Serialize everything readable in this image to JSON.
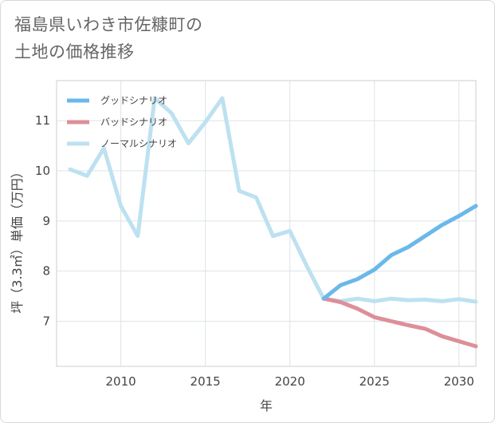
{
  "title_lines": [
    "福島県いわき市佐糠町の",
    "土地の価格推移"
  ],
  "chart_data": {
    "type": "line",
    "xlabel": "年",
    "ylabel": "坪（3.3㎡）単価（万円）",
    "xlim": [
      2006.2,
      2031
    ],
    "ylim": [
      6.1,
      11.8
    ],
    "xticks": [
      2010,
      2015,
      2020,
      2025,
      2030
    ],
    "yticks": [
      7,
      8,
      9,
      10,
      11
    ],
    "grid": true,
    "legend_position": "top-left",
    "series": [
      {
        "name": "グッドシナリオ",
        "color": "#6bb8ea",
        "x": [
          2022,
          2023,
          2024,
          2025,
          2026,
          2027,
          2028,
          2029,
          2030,
          2031
        ],
        "values": [
          7.45,
          7.72,
          7.84,
          8.03,
          8.32,
          8.48,
          8.7,
          8.92,
          9.1,
          9.3
        ]
      },
      {
        "name": "バッドシナリオ",
        "color": "#dd8f99",
        "x": [
          2022,
          2023,
          2024,
          2025,
          2026,
          2027,
          2028,
          2029,
          2030,
          2031
        ],
        "values": [
          7.45,
          7.38,
          7.25,
          7.08,
          7.0,
          6.92,
          6.85,
          6.7,
          6.6,
          6.5
        ]
      },
      {
        "name": "ノーマルシナリオ",
        "color": "#bde1f0",
        "x": [
          2007,
          2008,
          2009,
          2010,
          2011,
          2012,
          2013,
          2014,
          2015,
          2016,
          2017,
          2018,
          2019,
          2020,
          2021,
          2022,
          2023,
          2024,
          2025,
          2026,
          2027,
          2028,
          2029,
          2030,
          2031
        ],
        "values": [
          10.03,
          9.9,
          10.45,
          9.3,
          8.7,
          11.45,
          11.15,
          10.55,
          10.97,
          11.45,
          9.6,
          9.47,
          8.7,
          8.8,
          8.1,
          7.45,
          7.4,
          7.45,
          7.4,
          7.45,
          7.42,
          7.43,
          7.4,
          7.44,
          7.39
        ]
      }
    ]
  }
}
